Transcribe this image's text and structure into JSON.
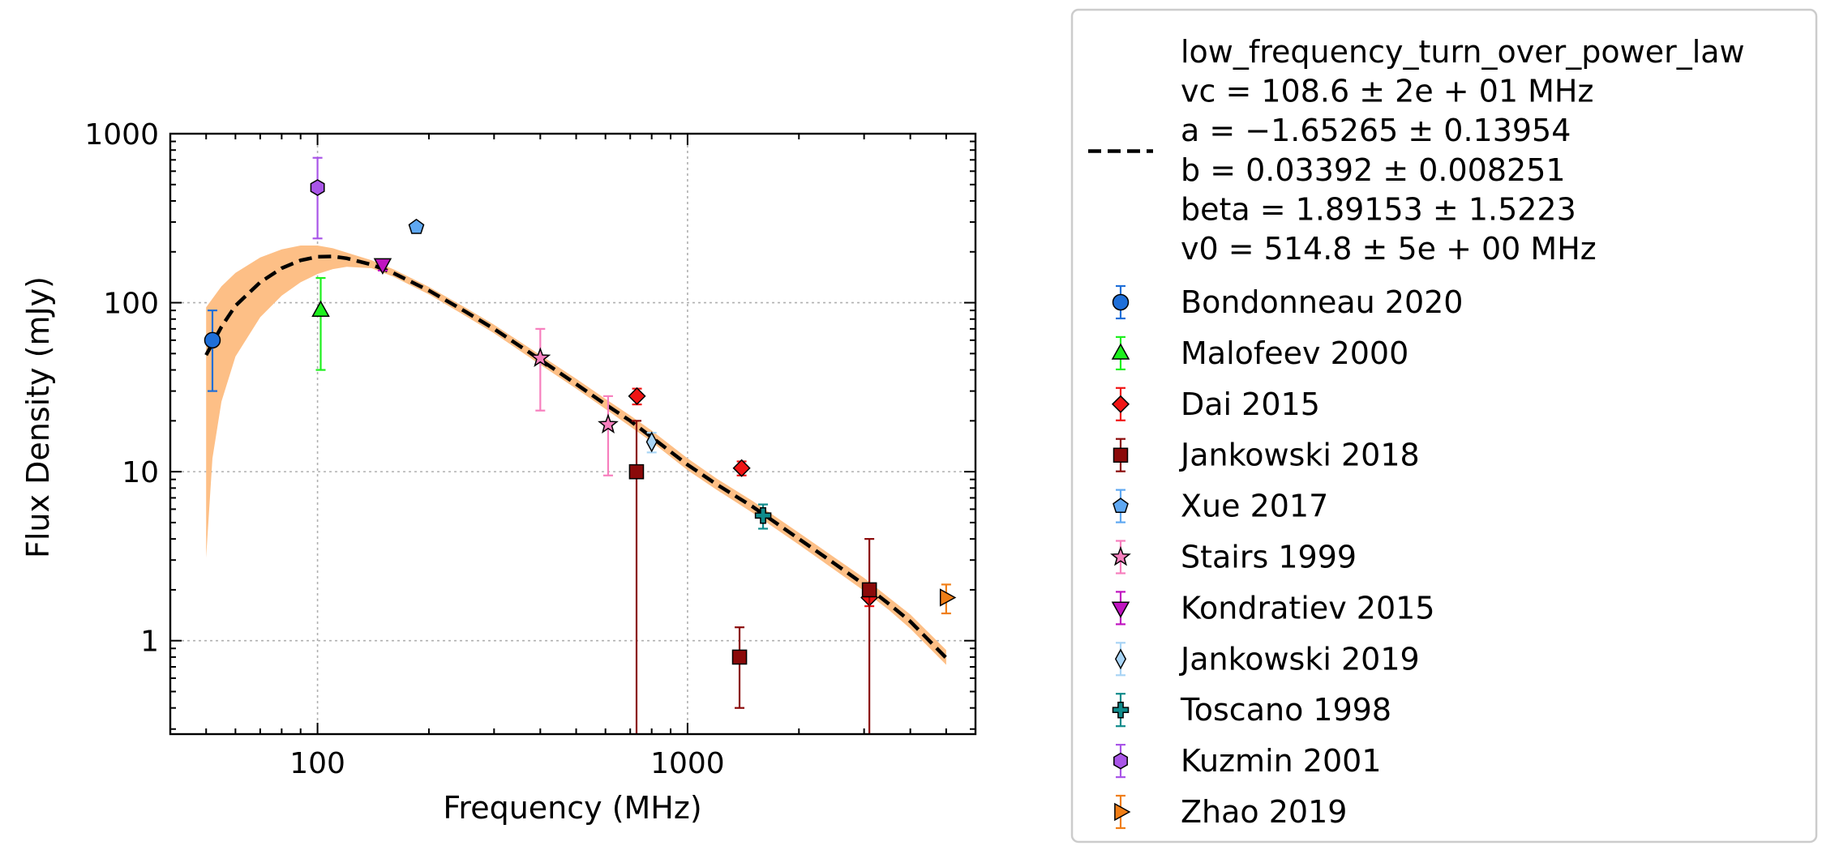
{
  "chart_data": {
    "type": "scatter",
    "xlabel": "Frequency (MHz)",
    "ylabel": "Flux Density (mJy)",
    "x_scale": "log",
    "y_scale": "log",
    "xlim": [
      40,
      6000
    ],
    "ylim": [
      0.28,
      1000
    ],
    "x_ticks": [
      {
        "value": 100,
        "label": "100"
      },
      {
        "value": 1000,
        "label": "1000"
      }
    ],
    "y_ticks": [
      {
        "value": 1,
        "label": "1"
      },
      {
        "value": 10,
        "label": "10"
      },
      {
        "value": 100,
        "label": "100"
      },
      {
        "value": 1000,
        "label": "1000"
      }
    ],
    "grid": true,
    "legend_position": "outside-right",
    "fit": {
      "model": "low_frequency_turn_over_power_law",
      "params_text": [
        "low_frequency_turn_over_power_law",
        "vc = 108.6 ± 2e + 01 MHz",
        "a = −1.65265 ± 0.13954",
        "b = 0.03392 ± 0.008251",
        "beta = 1.89153 ± 1.5223",
        "v0 = 514.8 ± 5e + 00 MHz"
      ],
      "line_color": "#000000",
      "band_color": "#fdbf86",
      "curve": [
        [
          50,
          49
        ],
        [
          55,
          72
        ],
        [
          60,
          96
        ],
        [
          70,
          132
        ],
        [
          80,
          160
        ],
        [
          90,
          178
        ],
        [
          100,
          187
        ],
        [
          110,
          188
        ],
        [
          120,
          183
        ],
        [
          140,
          168
        ],
        [
          160,
          150
        ],
        [
          200,
          118
        ],
        [
          250,
          89
        ],
        [
          300,
          70
        ],
        [
          400,
          46
        ],
        [
          500,
          33
        ],
        [
          600,
          25
        ],
        [
          700,
          20
        ],
        [
          800,
          16
        ],
        [
          1000,
          11
        ],
        [
          1200,
          8.4
        ],
        [
          1500,
          6.2
        ],
        [
          2000,
          4.0
        ],
        [
          2500,
          2.85
        ],
        [
          3000,
          2.15
        ],
        [
          3500,
          1.65
        ],
        [
          4000,
          1.3
        ],
        [
          5000,
          0.79
        ]
      ],
      "band_upper": [
        [
          50,
          94
        ],
        [
          55,
          125
        ],
        [
          60,
          150
        ],
        [
          70,
          185
        ],
        [
          80,
          207
        ],
        [
          90,
          218
        ],
        [
          100,
          218
        ],
        [
          110,
          210
        ],
        [
          120,
          198
        ],
        [
          140,
          178
        ],
        [
          160,
          158
        ],
        [
          200,
          124
        ],
        [
          250,
          94
        ],
        [
          300,
          74
        ],
        [
          400,
          49
        ],
        [
          500,
          35.5
        ],
        [
          600,
          27
        ],
        [
          700,
          21.5
        ],
        [
          800,
          17.5
        ],
        [
          1000,
          12
        ],
        [
          1200,
          9.1
        ],
        [
          1500,
          6.7
        ],
        [
          2000,
          4.35
        ],
        [
          2500,
          3.1
        ],
        [
          3000,
          2.35
        ],
        [
          3500,
          1.8
        ],
        [
          4000,
          1.43
        ],
        [
          5000,
          0.88
        ]
      ],
      "band_lower": [
        [
          50,
          3.1
        ],
        [
          52,
          12
        ],
        [
          55,
          26
        ],
        [
          60,
          48
        ],
        [
          70,
          82
        ],
        [
          80,
          110
        ],
        [
          90,
          132
        ],
        [
          100,
          148
        ],
        [
          110,
          158
        ],
        [
          120,
          163
        ],
        [
          140,
          160
        ],
        [
          160,
          143
        ],
        [
          200,
          112
        ],
        [
          250,
          84
        ],
        [
          300,
          66
        ],
        [
          400,
          43
        ],
        [
          500,
          31
        ],
        [
          600,
          23.5
        ],
        [
          700,
          18.5
        ],
        [
          800,
          15
        ],
        [
          1000,
          10.2
        ],
        [
          1200,
          7.8
        ],
        [
          1500,
          5.7
        ],
        [
          2000,
          3.7
        ],
        [
          2500,
          2.62
        ],
        [
          3000,
          1.97
        ],
        [
          3500,
          1.52
        ],
        [
          4000,
          1.18
        ],
        [
          5000,
          0.72
        ]
      ]
    },
    "series": [
      {
        "name": "Bondonneau 2020",
        "marker": "circle",
        "color": "#1f6fd8",
        "points": [
          {
            "x": 52,
            "y": 60,
            "ylo": 30,
            "yhi": 90
          }
        ]
      },
      {
        "name": "Malofeev 2000",
        "marker": "triangle-up",
        "color": "#1ef01e",
        "points": [
          {
            "x": 102,
            "y": 90,
            "ylo": 40,
            "yhi": 140
          }
        ]
      },
      {
        "name": "Dai 2015",
        "marker": "diamond",
        "color": "#f01414",
        "points": [
          {
            "x": 730,
            "y": 28,
            "ylo": 25,
            "yhi": 31
          },
          {
            "x": 1400,
            "y": 10.5,
            "ylo": 9.5,
            "yhi": 11.5
          },
          {
            "x": 3100,
            "y": 1.8,
            "ylo": 1.6,
            "yhi": 2.0
          }
        ]
      },
      {
        "name": "Jankowski 2018",
        "marker": "square",
        "color": "#8b0a0a",
        "points": [
          {
            "x": 728,
            "y": 10,
            "ylo": 0.28,
            "yhi": 20
          },
          {
            "x": 1382,
            "y": 0.8,
            "ylo": 0.4,
            "yhi": 1.2
          },
          {
            "x": 3100,
            "y": 2.0,
            "ylo": 0.28,
            "yhi": 4.0
          }
        ]
      },
      {
        "name": "Xue 2017",
        "marker": "pentagon",
        "color": "#5fa8f2",
        "points": [
          {
            "x": 185,
            "y": 280,
            "ylo": 280,
            "yhi": 280
          }
        ]
      },
      {
        "name": "Stairs 1999",
        "marker": "star",
        "color": "#f77fbe",
        "points": [
          {
            "x": 400,
            "y": 47,
            "ylo": 23,
            "yhi": 70
          },
          {
            "x": 610,
            "y": 19,
            "ylo": 9.5,
            "yhi": 28
          }
        ]
      },
      {
        "name": "Kondratiev 2015",
        "marker": "triangle-down",
        "color": "#c014c0",
        "points": [
          {
            "x": 150,
            "y": 168,
            "ylo": 155,
            "yhi": 180
          }
        ]
      },
      {
        "name": "Jankowski 2019",
        "marker": "thin-diamond",
        "color": "#a8d4f5",
        "points": [
          {
            "x": 800,
            "y": 15,
            "ylo": 13,
            "yhi": 17
          }
        ]
      },
      {
        "name": "Toscano 1998",
        "marker": "plus",
        "color": "#0f8b8b",
        "points": [
          {
            "x": 1600,
            "y": 5.5,
            "ylo": 4.6,
            "yhi": 6.4
          }
        ]
      },
      {
        "name": "Kuzmin 2001",
        "marker": "hexagon",
        "color": "#a955e8",
        "points": [
          {
            "x": 100,
            "y": 480,
            "ylo": 240,
            "yhi": 720
          }
        ]
      },
      {
        "name": "Zhao 2019",
        "marker": "triangle-right",
        "color": "#f07e16",
        "points": [
          {
            "x": 5000,
            "y": 1.8,
            "ylo": 1.45,
            "yhi": 2.15
          }
        ]
      }
    ]
  }
}
